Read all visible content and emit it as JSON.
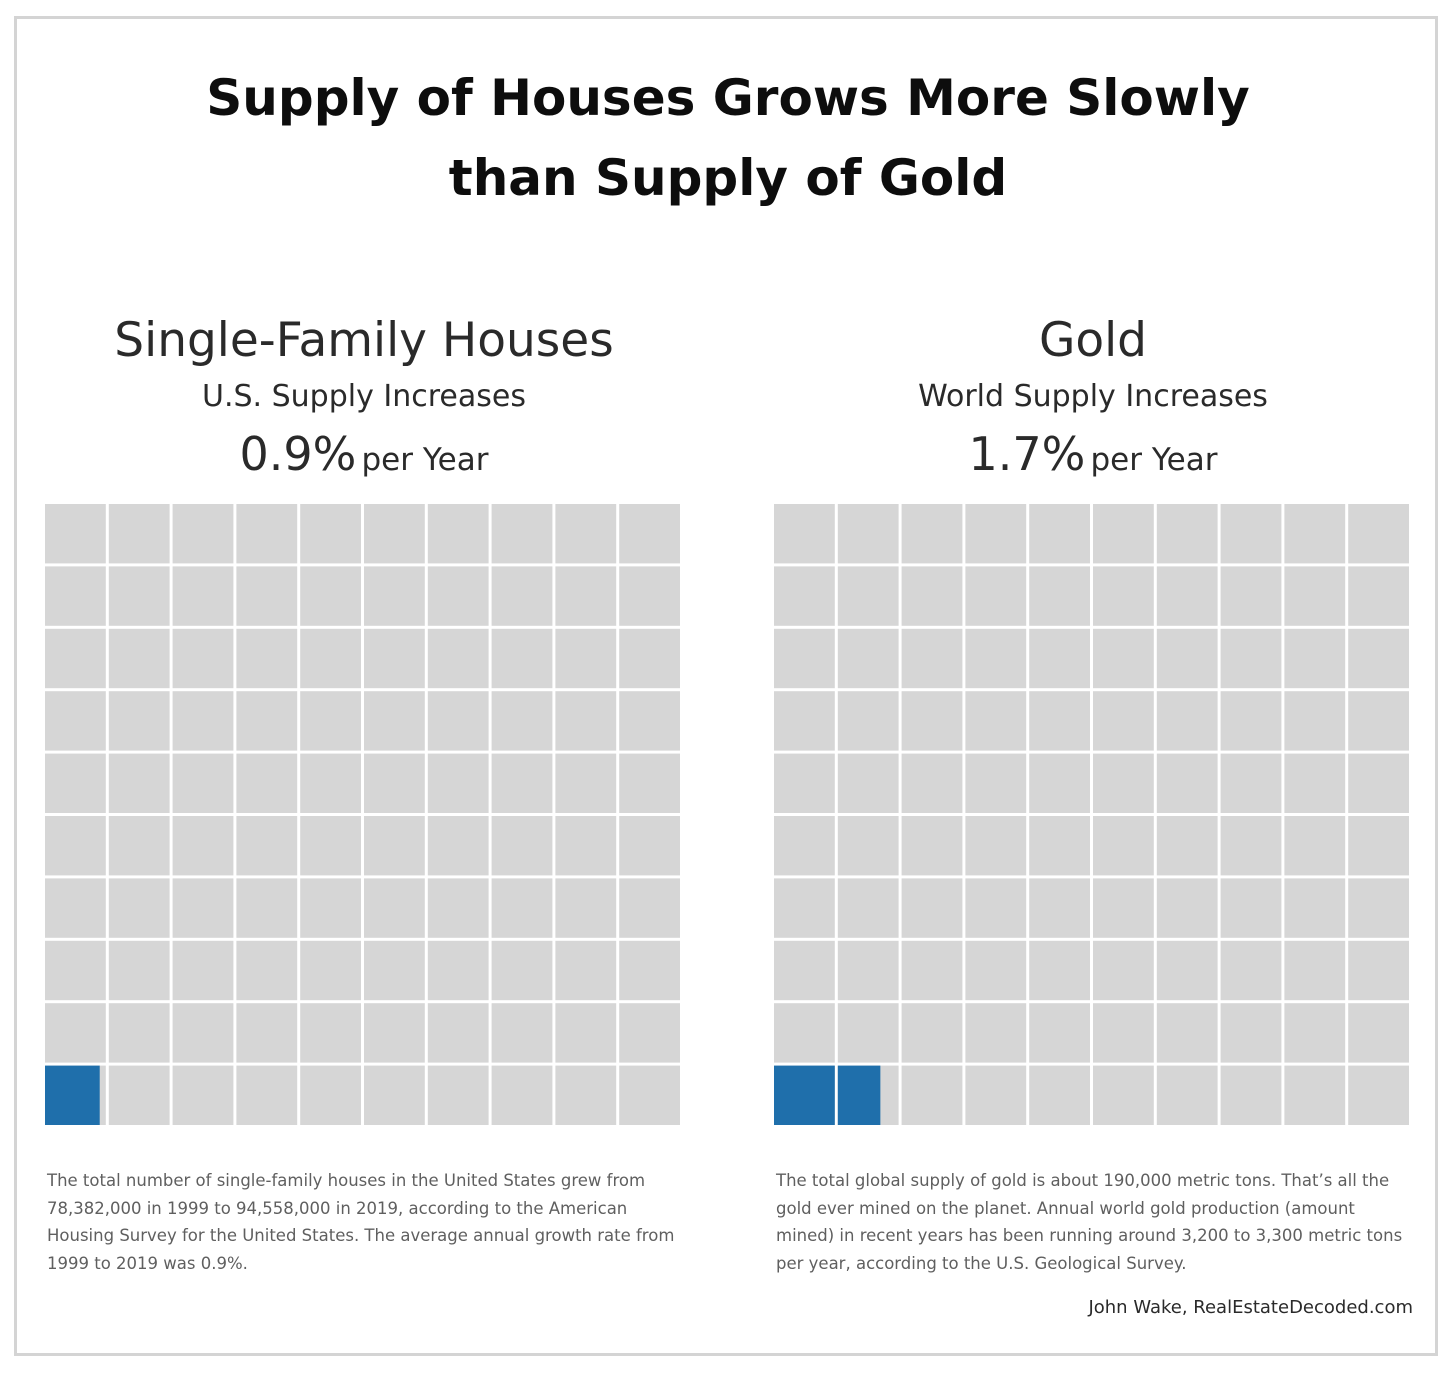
{
  "title_line1": "Supply of Houses Grows More Slowly",
  "title_line2": "than Supply of Gold",
  "colors": {
    "filled": "#1f6fab",
    "empty": "#d6d6d6"
  },
  "panels": [
    {
      "name": "Single-Family Houses",
      "subtitle": "U.S. Supply Increases",
      "rate_value": "0.9%",
      "rate_unit": "per Year",
      "note": "The total number of single-family houses in the United States grew from 78,382,000 in 1999 to 94,558,000 in 2019, according to the American Housing Survey for the United States. The average annual growth rate from 1999 to 2019 was 0.9%."
    },
    {
      "name": "Gold",
      "subtitle": "World Supply Increases",
      "rate_value": "1.7%",
      "rate_unit": "per Year",
      "note": "The total global supply of gold is about 190,000 metric tons. That’s all the gold ever mined on the planet. Annual world gold production (amount mined) in recent years has been running around 3,200 to 3,300 metric tons per year, according to the U.S. Geological Survey."
    }
  ],
  "credit": "John Wake, RealEstateDecoded.com",
  "chart_data": [
    {
      "type": "waffle",
      "grid": [
        10,
        10
      ],
      "total_cells": 100,
      "series": [
        {
          "name": "Single-Family Houses",
          "values": [
            0.9
          ]
        }
      ],
      "unit": "%"
    },
    {
      "type": "waffle",
      "grid": [
        10,
        10
      ],
      "total_cells": 100,
      "series": [
        {
          "name": "Gold",
          "values": [
            1.7
          ]
        }
      ],
      "unit": "%"
    }
  ]
}
